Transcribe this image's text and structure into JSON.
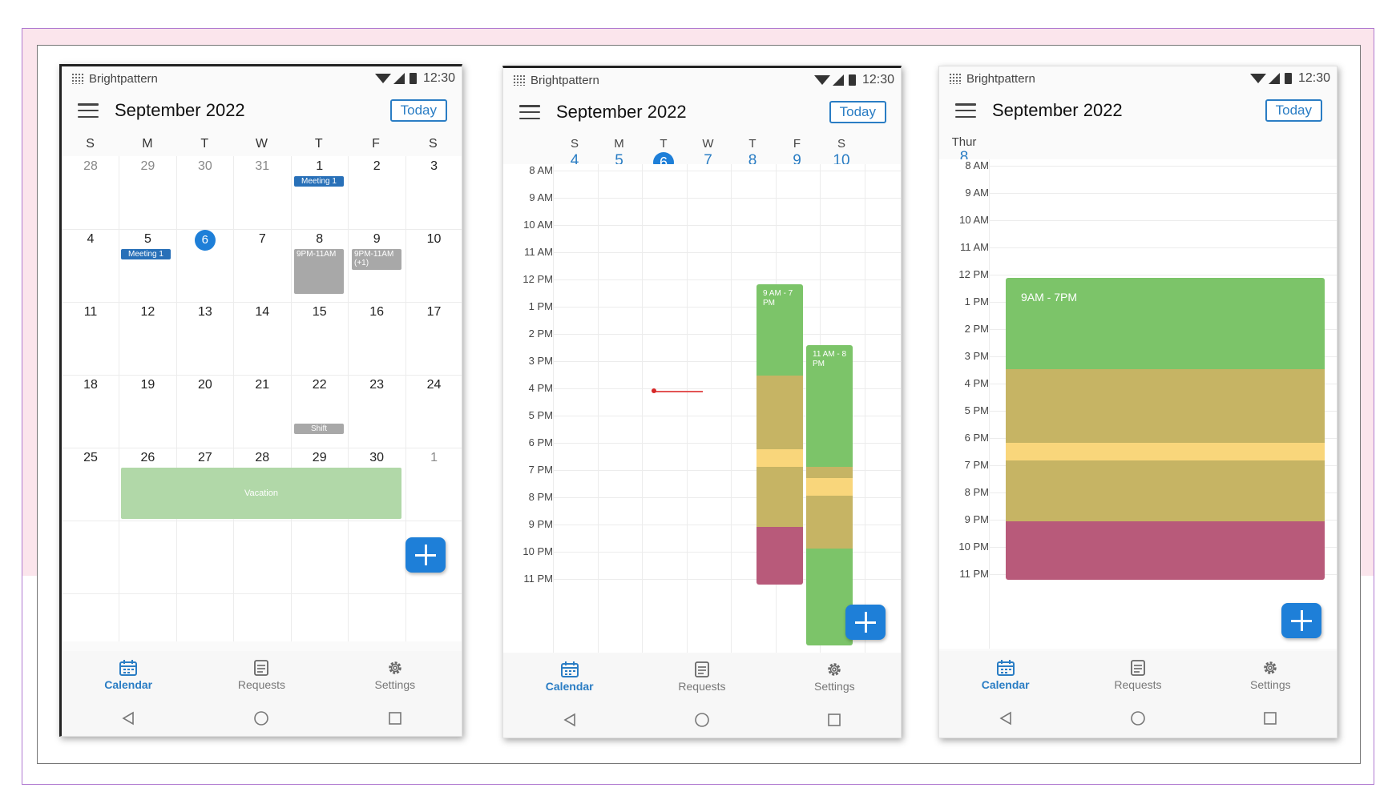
{
  "status_bar": {
    "brand": "Brightpattern",
    "time": "12:30"
  },
  "header": {
    "month_title": "September 2022",
    "today_label": "Today"
  },
  "nav": {
    "calendar": "Calendar",
    "requests": "Requests",
    "settings": "Settings"
  },
  "colors": {
    "accent": "#1e7fd8",
    "green": "#7cc469",
    "olive": "#c6b464",
    "yellow": "#f9d67b",
    "red": "#b85a7a",
    "meeting": "#2870b8"
  },
  "month_view": {
    "weekdays": [
      "S",
      "M",
      "T",
      "W",
      "T",
      "F",
      "S"
    ],
    "weeks": [
      [
        "28",
        "29",
        "30",
        "31",
        "1",
        "2",
        "3"
      ],
      [
        "4",
        "5",
        "6",
        "7",
        "8",
        "9",
        "10"
      ],
      [
        "11",
        "12",
        "13",
        "14",
        "15",
        "16",
        "17"
      ],
      [
        "18",
        "19",
        "20",
        "21",
        "22",
        "23",
        "24"
      ],
      [
        "25",
        "26",
        "27",
        "28",
        "29",
        "30",
        "1"
      ]
    ],
    "today": "6",
    "events": {
      "meeting_1": "Meeting 1",
      "meeting_2": "Meeting 1",
      "shift_8": "9PM-11AM",
      "shift_9": "9PM-11AM",
      "shift_9_more": "(+1)",
      "shift_22": "Shift",
      "vacation": "Vacation"
    }
  },
  "week_view": {
    "days": [
      {
        "l": "S",
        "n": "4"
      },
      {
        "l": "M",
        "n": "5"
      },
      {
        "l": "T",
        "n": "6"
      },
      {
        "l": "W",
        "n": "7"
      },
      {
        "l": "T",
        "n": "8"
      },
      {
        "l": "F",
        "n": "9"
      },
      {
        "l": "S",
        "n": "10"
      }
    ],
    "today": "6",
    "hours": [
      "8 AM",
      "9 AM",
      "10 AM",
      "11 AM",
      "12 PM",
      "1 PM",
      "2 PM",
      "3 PM",
      "4 PM",
      "5 PM",
      "6 PM",
      "7 PM",
      "8 PM",
      "9 PM",
      "10 PM",
      "11 PM"
    ],
    "event_thu": "9 AM - 7 PM",
    "event_fri": "11 AM - 8 PM"
  },
  "day_view": {
    "day_label": "Thur",
    "day_number": "8",
    "hours": [
      "8 AM",
      "9 AM",
      "10 AM",
      "11 AM",
      "12 PM",
      "1 PM",
      "2 PM",
      "3 PM",
      "4 PM",
      "5 PM",
      "6 PM",
      "7 PM",
      "8 PM",
      "9 PM",
      "10 PM",
      "11 PM"
    ],
    "event": "9AM - 7PM"
  }
}
